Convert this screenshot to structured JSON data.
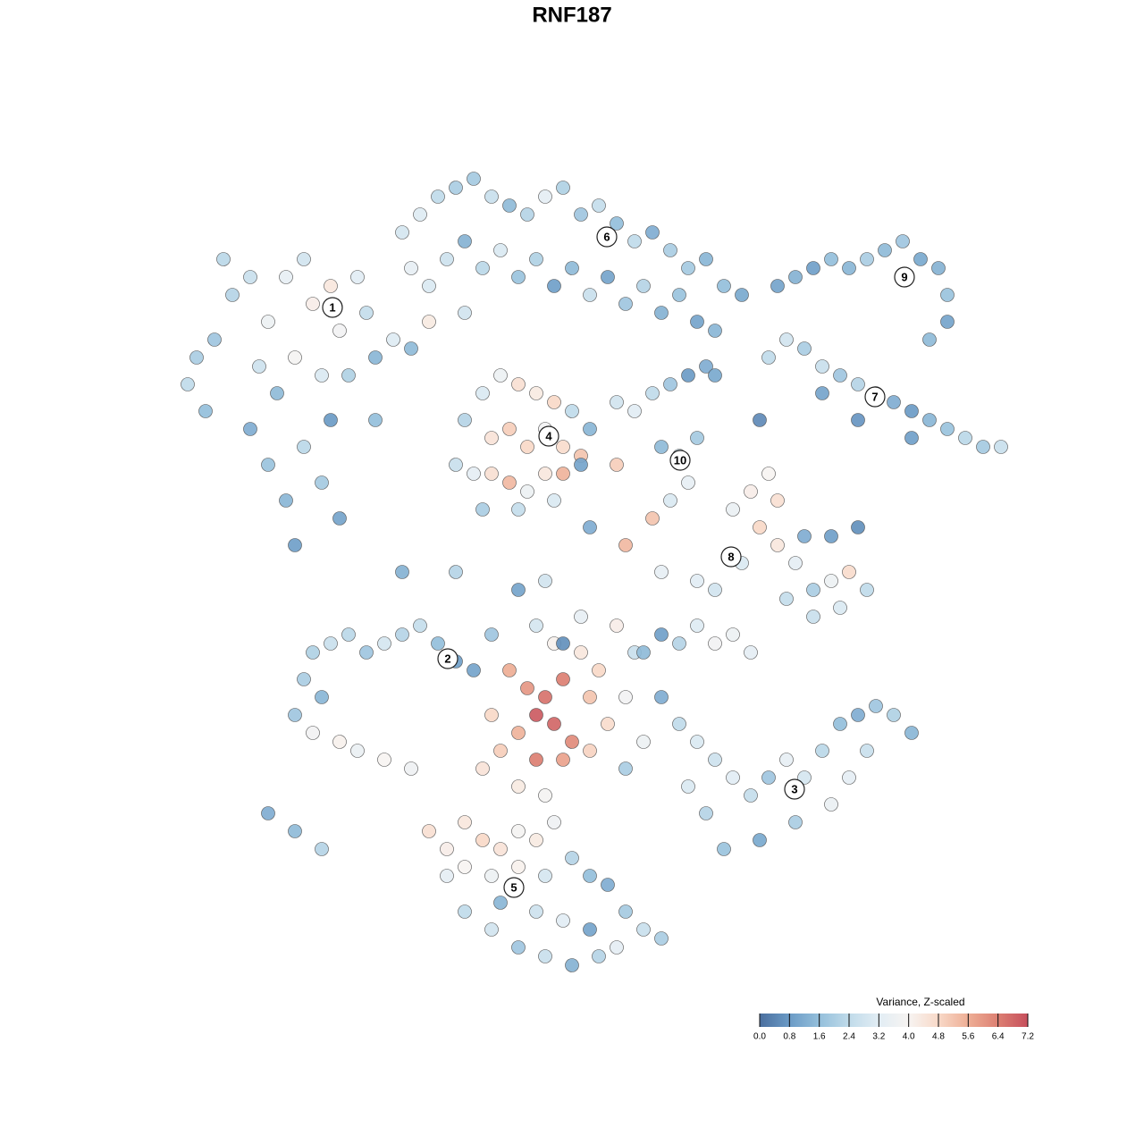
{
  "chart_data": {
    "type": "scatter",
    "title": "RNF187",
    "xlim": [
      18,
      115
    ],
    "ylim": [
      16,
      113
    ],
    "series": [
      {
        "x": [
          22,
          24,
          21,
          23,
          26,
          28,
          30,
          32,
          34,
          35,
          37,
          38,
          40,
          41,
          29,
          31,
          33,
          36,
          39,
          42,
          28,
          30,
          32,
          34,
          36,
          38,
          33,
          37,
          44,
          25,
          45,
          47,
          49,
          51,
          53,
          55,
          57,
          59,
          61,
          63,
          65,
          67,
          69,
          71,
          73,
          75,
          77,
          79,
          81,
          83,
          46,
          48,
          50,
          52,
          54,
          56,
          58,
          60,
          62,
          64,
          66,
          68,
          70,
          72,
          74,
          76,
          78,
          80,
          48,
          52,
          52,
          54,
          56,
          58,
          60,
          62,
          64,
          66,
          55,
          57,
          59,
          61,
          63,
          65,
          51,
          53,
          55,
          57,
          59,
          61,
          63,
          65,
          54,
          58,
          62,
          69,
          71,
          73,
          75,
          77,
          79,
          74,
          76,
          77,
          75,
          78,
          80,
          69,
          73,
          70,
          87,
          89,
          91,
          93,
          95,
          97,
          99,
          101,
          103,
          105,
          106,
          106,
          104,
          86,
          88,
          90,
          92,
          94,
          96,
          98,
          100,
          102,
          104,
          106,
          108,
          110,
          112,
          102,
          92,
          96,
          82,
          84,
          86,
          87,
          85,
          87,
          89,
          83,
          80,
          78,
          91,
          93,
          95,
          97,
          91,
          94,
          96,
          93,
          90,
          88,
          35,
          37,
          39,
          41,
          43,
          45,
          47,
          49,
          51,
          34,
          36,
          33,
          35,
          38,
          40,
          43,
          46,
          30,
          33,
          36,
          57,
          59,
          61,
          63,
          60,
          62,
          58,
          64,
          56,
          60,
          63,
          66,
          68,
          66,
          67,
          65,
          62,
          55,
          54,
          58,
          70,
          71,
          69,
          65,
          60,
          55,
          53,
          72,
          70,
          61,
          48,
          50,
          52,
          54,
          56,
          58,
          60,
          62,
          50,
          52,
          55,
          58,
          61,
          64,
          66,
          68,
          70,
          72,
          74,
          52,
          55,
          58,
          61,
          64,
          67,
          56,
          60,
          63,
          66,
          69,
          72,
          74,
          76,
          78,
          80,
          82,
          84,
          74,
          76,
          78,
          80,
          82,
          84,
          86,
          88,
          90,
          92,
          94,
          96,
          98,
          100,
          102,
          97,
          93,
          89,
          85,
          81,
          79,
          77,
          95,
          45,
          51,
          58,
          61,
          66,
          74,
          85,
          46,
          42,
          63
        ],
        "values": [
          88,
          90,
          85,
          82,
          95,
          97,
          92,
          97,
          99,
          94,
          96,
          91,
          97,
          93,
          87,
          84,
          88,
          86,
          86,
          88,
          80,
          76,
          72,
          78,
          74,
          70,
          67,
          81,
          90,
          99,
          102,
          104,
          106,
          107,
          108,
          106,
          105,
          104,
          106,
          107,
          104,
          105,
          103,
          101,
          102,
          100,
          98,
          99,
          96,
          95,
          98,
          96,
          99,
          101,
          98,
          100,
          97,
          99,
          96,
          98,
          95,
          97,
          94,
          96,
          93,
          95,
          92,
          91,
          92,
          93,
          81,
          84,
          86,
          85,
          84,
          83,
          82,
          80,
          79,
          80,
          78,
          80,
          78,
          77,
          76,
          75,
          75,
          74,
          73,
          75,
          75,
          76,
          71,
          71,
          72,
          83,
          82,
          84,
          85,
          86,
          87,
          78,
          77,
          74,
          72,
          79,
          86,
          76,
          70,
          67,
          96,
          97,
          98,
          99,
          98,
          99,
          100,
          101,
          99,
          98,
          95,
          92,
          90,
          88,
          90,
          89,
          87,
          86,
          85,
          84,
          83,
          82,
          81,
          80,
          79,
          78,
          78,
          79,
          84,
          81,
          71,
          73,
          75,
          72,
          69,
          67,
          65,
          65,
          62,
          63,
          62,
          63,
          64,
          62,
          59,
          60,
          69,
          68,
          68,
          61,
          55,
          56,
          57,
          55,
          56,
          57,
          58,
          56,
          54,
          52,
          50,
          48,
          46,
          45,
          44,
          43,
          42,
          37,
          35,
          33,
          53,
          51,
          50,
          52,
          48,
          47,
          46,
          45,
          44,
          43,
          43,
          44,
          47,
          50,
          53,
          55,
          56,
          48,
          42,
          40,
          50,
          55,
          58,
          59,
          58,
          57,
          53,
          45,
          42,
          39,
          35,
          33,
          36,
          34,
          33,
          35,
          34,
          36,
          30,
          31,
          30,
          31,
          30,
          32,
          30,
          29,
          26,
          24,
          23,
          26,
          24,
          22,
          21,
          20,
          21,
          27,
          26,
          25,
          24,
          22,
          55,
          57,
          56,
          58,
          56,
          57,
          55,
          50,
          47,
          45,
          43,
          41,
          39,
          41,
          43,
          41,
          44,
          47,
          48,
          49,
          48,
          46,
          44,
          38,
          36,
          34,
          33,
          37,
          40,
          41,
          64,
          64,
          62,
          63,
          69,
          64,
          81,
          89,
          81,
          56
        ],
        "z": [
          2.0,
          1.8,
          2.4,
          1.6,
          2.2,
          2.6,
          3.6,
          3.4,
          2.8,
          4.2,
          4.4,
          3.8,
          3.2,
          2.5,
          2.7,
          1.5,
          3.9,
          3.0,
          2.1,
          1.4,
          1.2,
          1.7,
          1.4,
          2.3,
          1.9,
          1.0,
          0.9,
          0.8,
          3.1,
          2.3,
          2.9,
          3.1,
          2.4,
          2.0,
          1.9,
          2.6,
          1.5,
          2.2,
          3.3,
          2.1,
          1.8,
          2.5,
          1.6,
          2.4,
          1.2,
          2.0,
          1.9,
          1.4,
          1.6,
          1.1,
          3.4,
          3.0,
          2.7,
          1.3,
          2.3,
          3.0,
          1.7,
          2.1,
          0.9,
          1.5,
          2.6,
          1.0,
          1.8,
          2.2,
          1.3,
          1.7,
          1.0,
          1.4,
          4.3,
          2.8,
          2.2,
          3.0,
          3.6,
          4.6,
          4.3,
          4.8,
          2.4,
          1.4,
          4.5,
          5.0,
          4.8,
          3.8,
          4.7,
          5.2,
          2.6,
          3.3,
          4.6,
          5.4,
          3.6,
          4.4,
          5.5,
          1.0,
          2.0,
          2.5,
          3.0,
          2.8,
          3.2,
          2.4,
          1.8,
          0.8,
          1.2,
          1.5,
          2.6,
          3.4,
          3.0,
          1.9,
          1.1,
          5.0,
          5.2,
          5.4,
          1.0,
          1.3,
          0.9,
          1.6,
          1.4,
          2.0,
          1.5,
          1.8,
          1.1,
          1.3,
          1.7,
          1.0,
          1.5,
          2.4,
          2.8,
          2.0,
          2.6,
          1.8,
          2.2,
          1.6,
          1.2,
          0.8,
          1.4,
          1.7,
          2.3,
          1.9,
          2.6,
          0.9,
          1.0,
          0.7,
          3.5,
          4.2,
          4.0,
          4.6,
          4.8,
          4.4,
          3.3,
          3.0,
          2.8,
          3.2,
          2.0,
          3.6,
          4.7,
          2.4,
          2.6,
          3.0,
          0.6,
          0.9,
          1.2,
          2.5,
          2.1,
          2.6,
          2.3,
          1.8,
          2.9,
          2.2,
          2.5,
          1.6,
          0.9,
          2.0,
          1.4,
          1.8,
          3.8,
          4.1,
          3.5,
          4.0,
          3.7,
          1.2,
          1.5,
          2.2,
          5.6,
          6.0,
          6.6,
          6.4,
          7.0,
          6.8,
          5.5,
          6.2,
          5.0,
          6.4,
          5.8,
          4.9,
          4.7,
          5.2,
          4.8,
          4.4,
          4.1,
          4.8,
          4.5,
          4.3,
          3.8,
          2.6,
          4.2,
          3.4,
          2.9,
          1.8,
          1.0,
          3.6,
          2.0,
          3.9,
          4.6,
          4.2,
          4.4,
          4.8,
          4.5,
          3.9,
          4.3,
          3.7,
          3.3,
          4.0,
          3.6,
          4.1,
          2.9,
          2.2,
          1.6,
          1.2,
          1.9,
          2.6,
          2.0,
          2.4,
          2.8,
          1.8,
          2.6,
          1.3,
          2.2,
          1.4,
          2.7,
          3.2,
          1.0,
          3.3,
          1.5,
          0.9,
          2.2,
          3.1,
          3.8,
          3.6,
          3.3,
          1.2,
          2.4,
          3.0,
          2.7,
          3.2,
          2.5,
          1.8,
          3.4,
          2.9,
          2.3,
          1.6,
          1.2,
          1.8,
          2.1,
          1.4,
          2.6,
          3.5,
          2.0,
          1.1,
          1.7,
          2.2,
          3.0,
          3.3,
          1.3,
          2.2,
          1.0,
          2.8,
          1.2,
          3.4,
          0.5,
          1.5,
          1.6,
          0.6
        ]
      }
    ],
    "cluster_labels": [
      {
        "label": "1",
        "x": 37.2,
        "y": 93.6
      },
      {
        "label": "2",
        "x": 50.1,
        "y": 54.3
      },
      {
        "label": "3",
        "x": 88.9,
        "y": 39.7
      },
      {
        "label": "4",
        "x": 61.4,
        "y": 79.2
      },
      {
        "label": "5",
        "x": 57.5,
        "y": 28.7
      },
      {
        "label": "6",
        "x": 67.9,
        "y": 101.5
      },
      {
        "label": "7",
        "x": 97.9,
        "y": 83.6
      },
      {
        "label": "8",
        "x": 81.8,
        "y": 65.7
      },
      {
        "label": "9",
        "x": 101.2,
        "y": 97.0
      },
      {
        "label": "10",
        "x": 76.1,
        "y": 76.5
      }
    ],
    "colorbar_title": "Variance, Z-scaled",
    "clim": [
      0,
      7.2
    ],
    "colorscale": [
      "#4a6e9e",
      "#6b9bc6",
      "#94bfdb",
      "#c0dbea",
      "#e2edf4",
      "#f7f4f2",
      "#f8d9c8",
      "#eeae95",
      "#dc7f72",
      "#c64f5c"
    ],
    "cticks": [
      {
        "value": 0,
        "label": "0.0"
      },
      0.8,
      1.6,
      2.4,
      3.2,
      {
        "value": 4,
        "label": "4.0"
      },
      4.8,
      5.6,
      6.4,
      7.2
    ]
  }
}
